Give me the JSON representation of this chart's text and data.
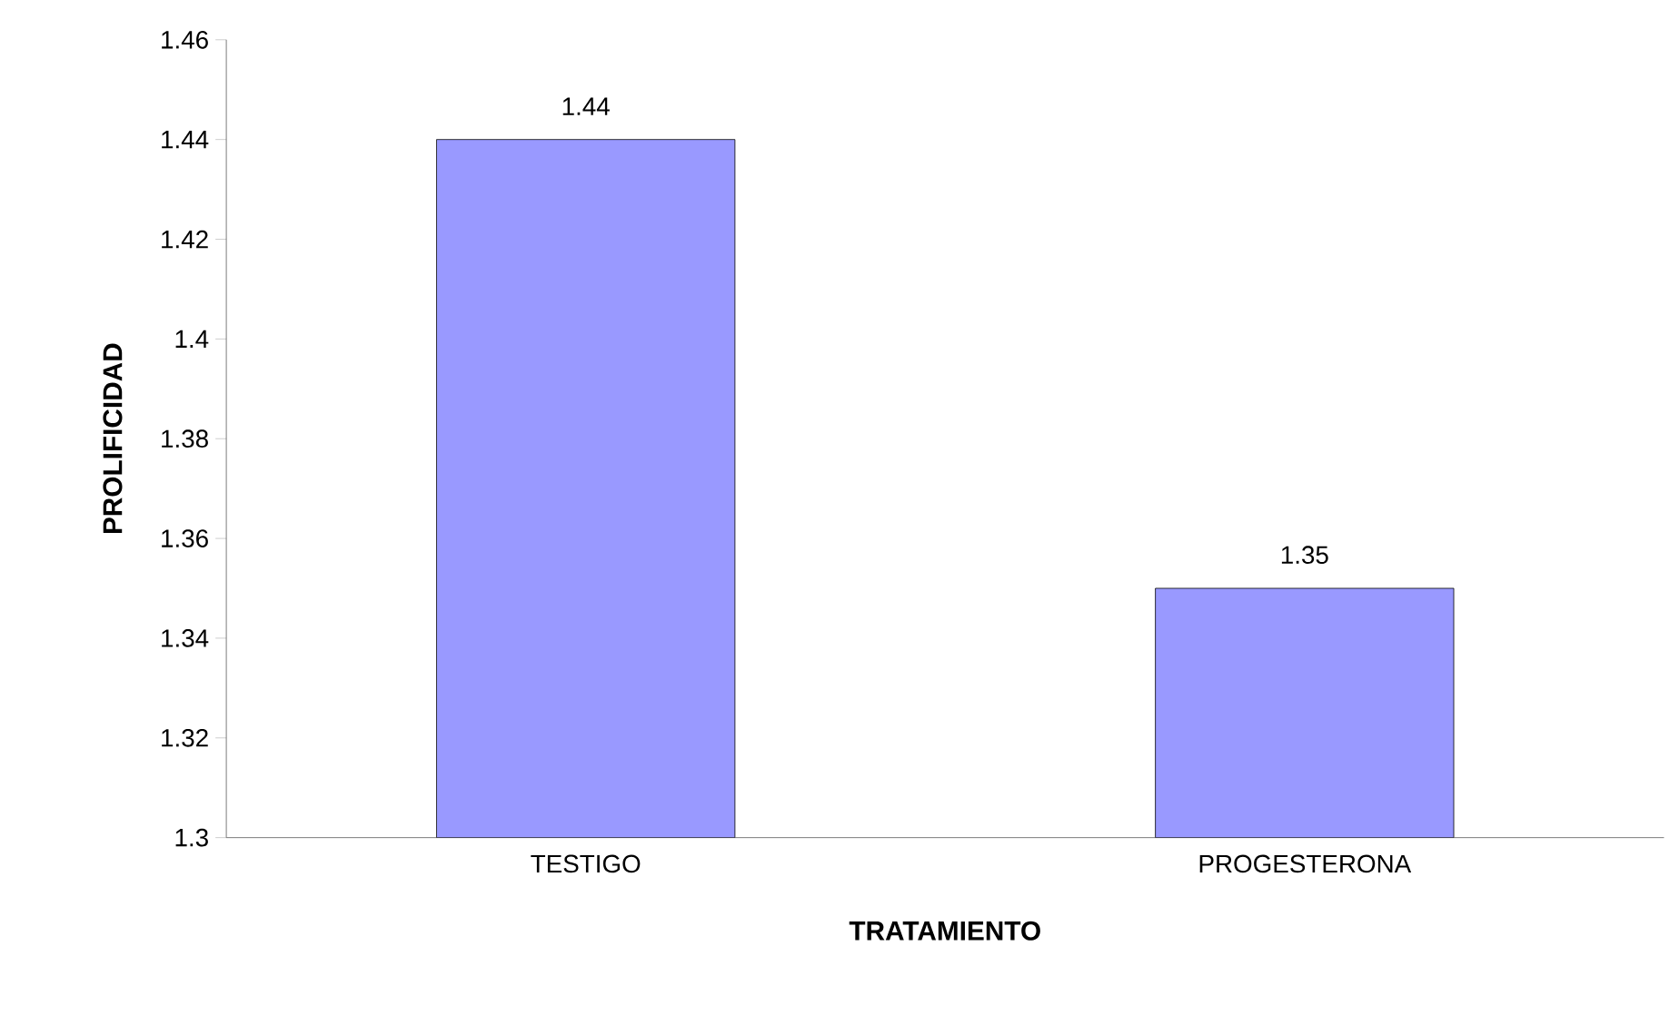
{
  "chart_data": {
    "type": "bar",
    "xlabel": "TRATAMIENTO",
    "ylabel": "PROLIFICIDAD",
    "categories": [
      "TESTIGO",
      "PROGESTERONA"
    ],
    "values": [
      1.44,
      1.35
    ],
    "color": "#9999ff",
    "ylim": [
      1.3,
      1.46
    ],
    "yticks": [
      1.3,
      1.32,
      1.34,
      1.36,
      1.38,
      1.4,
      1.42,
      1.44,
      1.46
    ],
    "grid": false,
    "data_labels": true
  }
}
